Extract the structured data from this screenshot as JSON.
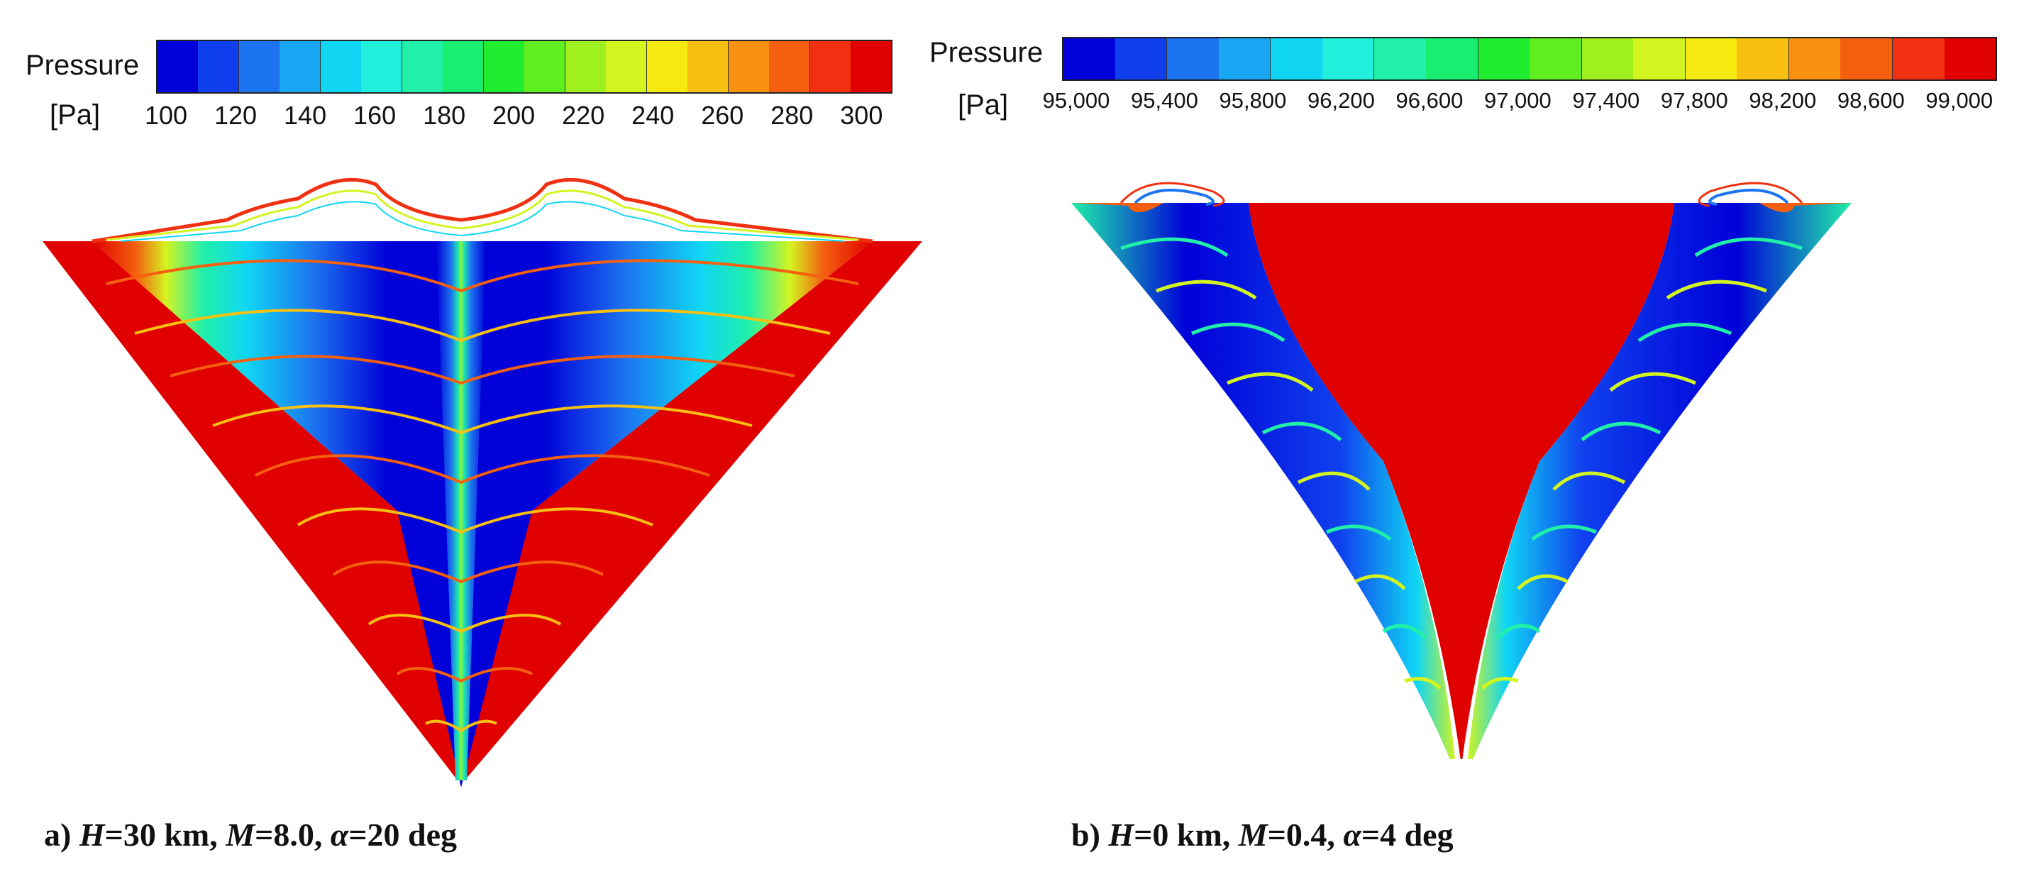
{
  "panels": [
    {
      "legend": {
        "title": "Pressure",
        "unit": "[Pa]",
        "ticks": [
          "100",
          "120",
          "140",
          "160",
          "180",
          "200",
          "220",
          "240",
          "260",
          "280",
          "300"
        ],
        "range": [
          100,
          300
        ],
        "colors": [
          "#0000d8",
          "#1040ee",
          "#1c74f0",
          "#18a6f2",
          "#10d6f4",
          "#20f0dc",
          "#20f0a8",
          "#18ee70",
          "#20ec30",
          "#60ee20",
          "#a0f020",
          "#d4f420",
          "#f4ea10",
          "#f8c010",
          "#f89010",
          "#f46010",
          "#f03010",
          "#e00000"
        ]
      },
      "caption": {
        "prefix": "a) ",
        "H_label": "H",
        "H_value": "=30 km, ",
        "M_label": "M",
        "M_value": "=8.0, ",
        "alpha_label": "α",
        "alpha_value": "=20 deg"
      }
    },
    {
      "legend": {
        "title": "Pressure",
        "unit": "[Pa]",
        "ticks": [
          "95,000",
          "95,400",
          "95,800",
          "96,200",
          "96,600",
          "97,000",
          "97,400",
          "97,800",
          "98,200",
          "98,600",
          "99,000"
        ],
        "range": [
          95000,
          99000
        ],
        "colors": [
          "#0000d8",
          "#1040ee",
          "#1c74f0",
          "#18a6f2",
          "#10d6f4",
          "#20f0dc",
          "#20f0a8",
          "#18ee70",
          "#20ec30",
          "#60ee20",
          "#a0f020",
          "#d4f420",
          "#f4ea10",
          "#f8c010",
          "#f89010",
          "#f46010",
          "#f03010",
          "#e00000"
        ]
      },
      "caption": {
        "prefix": "b) ",
        "H_label": "H",
        "H_value": "=0 km, ",
        "M_label": "M",
        "M_value": "=0.4, ",
        "alpha_label": "α",
        "alpha_value": "=4 deg"
      }
    }
  ]
}
